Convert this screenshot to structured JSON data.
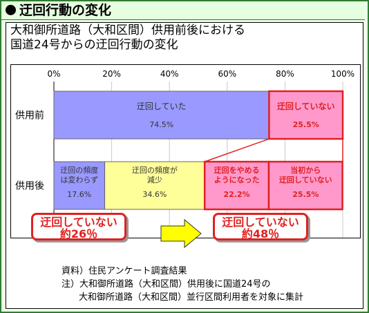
{
  "header": {
    "title": "迂回行動の変化"
  },
  "subtitle": {
    "line1": "大和御所道路（大和区間）供用前後における",
    "line2": "国道24号からの迂回行動の変化"
  },
  "chart_data": {
    "type": "bar",
    "stacked": true,
    "orientation": "horizontal",
    "x_ticks": [
      "0%",
      "20%",
      "40%",
      "60%",
      "80%",
      "100%"
    ],
    "xlim": [
      0,
      100
    ],
    "rows": [
      {
        "label": "供用前",
        "segments": [
          {
            "name": "迂回していた",
            "value": 74.5,
            "value_label": "74.5%",
            "color": "#9999ff",
            "highlight": false
          },
          {
            "name": "迂回していない",
            "value": 25.5,
            "value_label": "25.5%",
            "color": "#ff99cc",
            "highlight": true
          }
        ]
      },
      {
        "label": "供用後",
        "segments": [
          {
            "name": "迂回の頻度は変わらず",
            "name_lines": [
              "迂回の頻度",
              "は変わらず"
            ],
            "value": 17.6,
            "value_label": "17.6%",
            "color": "#9999ff",
            "highlight": false
          },
          {
            "name": "迂回の頻度が減少",
            "name_lines": [
              "迂回の頻度が",
              "減少"
            ],
            "value": 34.6,
            "value_label": "34.6%",
            "color": "#ffff99",
            "highlight": false
          },
          {
            "name": "迂回をやめるようになった",
            "name_lines": [
              "迂回をやめる",
              "ようになった"
            ],
            "value": 22.2,
            "value_label": "22.2%",
            "color": "#ff99cc",
            "highlight": true
          },
          {
            "name": "当初から迂回していない",
            "name_lines": [
              "当初から",
              "迂回していない"
            ],
            "value": 25.5,
            "value_label": "25.5%",
            "color": "#ff99cc",
            "highlight": true
          }
        ]
      }
    ],
    "colors": {
      "highlight_text": "#e02020",
      "highlight_border": "#e02020"
    }
  },
  "callouts": {
    "before": {
      "line1": "迂回していない",
      "line2": "約26％"
    },
    "after": {
      "line1": "迂回していない",
      "line2": "約48％"
    }
  },
  "notes": {
    "source": "資料）住民アンケート調査結果",
    "note1": "注）大和御所道路（大和区間）供用後に国道24号の",
    "note2": "大和御所道路（大和区間）並行区間利用者を対象に集計"
  },
  "colors": {
    "frame": "#2f7d2f",
    "arrow": "#ffff00",
    "callout": "#e02020"
  }
}
